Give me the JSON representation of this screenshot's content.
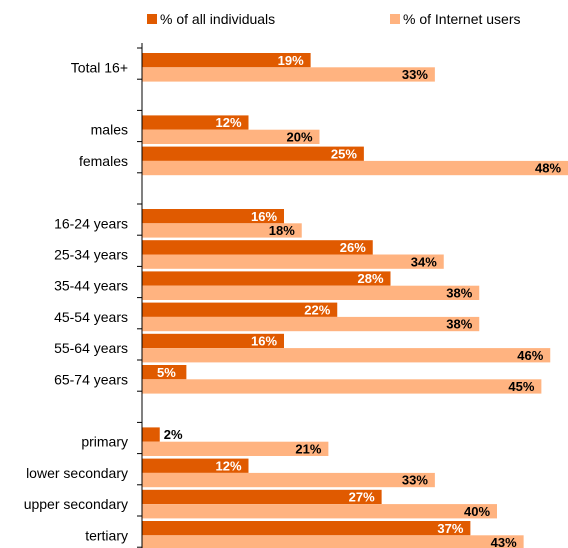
{
  "chart_data": {
    "type": "bar",
    "orientation": "horizontal",
    "title": "",
    "xlabel": "",
    "ylabel": "",
    "legend_position": "top",
    "xlim": [
      0,
      48
    ],
    "categories": [
      "Total 16+",
      "males",
      "females",
      "16-24 years",
      "25-34 years",
      "35-44 years",
      "45-54 years",
      "55-64 years",
      "65-74 years",
      "primary",
      "lower secondary",
      "upper secondary",
      "tertiary"
    ],
    "groups": [
      [
        "Total 16+"
      ],
      [
        "males",
        "females"
      ],
      [
        "16-24 years",
        "25-34 years",
        "35-44 years",
        "45-54 years",
        "55-64 years",
        "65-74 years"
      ],
      [
        "primary",
        "lower secondary",
        "upper secondary",
        "tertiary"
      ]
    ],
    "series": [
      {
        "name": "% of all individuals",
        "color": "#e05a00",
        "label_color": "#ffffff",
        "values": [
          19,
          12,
          25,
          16,
          26,
          28,
          22,
          16,
          5,
          2,
          12,
          27,
          37
        ],
        "labels": [
          "19%",
          "12%",
          "25%",
          "16%",
          "26%",
          "28%",
          "22%",
          "16%",
          "5%",
          "2%",
          "12%",
          "27%",
          "37%"
        ]
      },
      {
        "name": "% of Internet users",
        "color": "#ffb380",
        "label_color": "#000000",
        "values": [
          33,
          20,
          48,
          18,
          34,
          38,
          38,
          46,
          45,
          21,
          33,
          40,
          43
        ],
        "labels": [
          "33%",
          "20%",
          "48%",
          "18%",
          "34%",
          "38%",
          "38%",
          "46%",
          "45%",
          "21%",
          "33%",
          "40%",
          "43%"
        ]
      }
    ]
  }
}
